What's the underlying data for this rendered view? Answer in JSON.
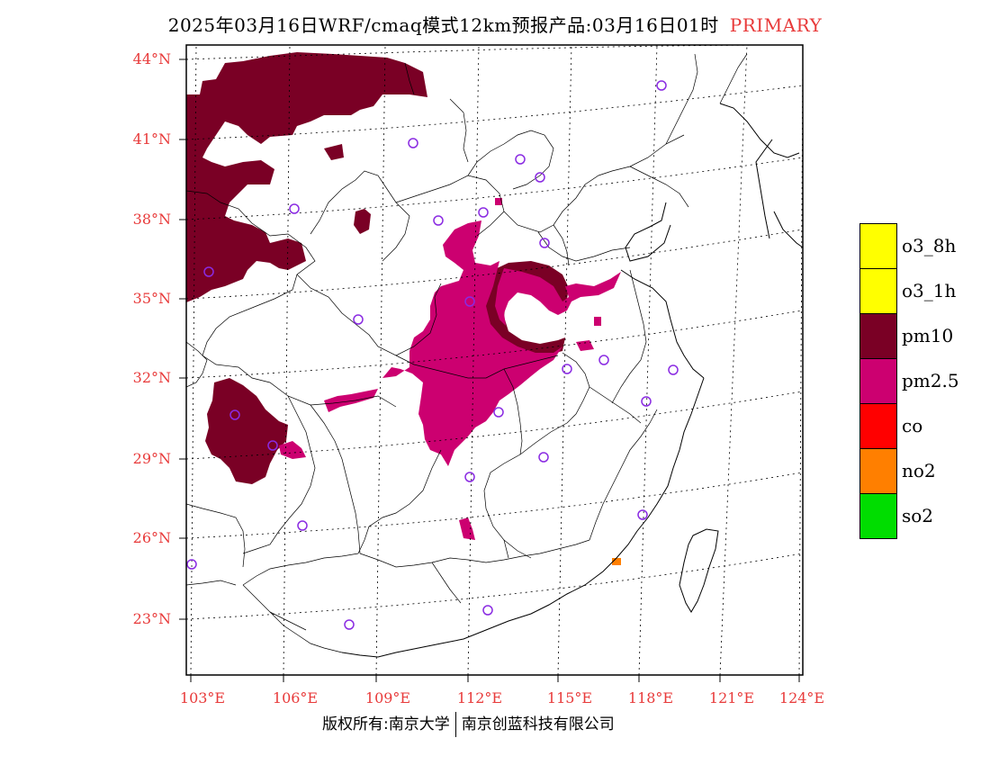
{
  "header": {
    "title": "2025年03月16日WRF/cmaq模式12km预报产品:03月16日01时",
    "badge": "PRIMARY"
  },
  "map": {
    "lat_labels": [
      "44°N",
      "41°N",
      "38°N",
      "35°N",
      "32°N",
      "29°N",
      "26°N",
      "23°N"
    ],
    "lon_labels": [
      "103°E",
      "106°E",
      "109°E",
      "112°E",
      "115°E",
      "118°E",
      "121°E",
      "124°E"
    ]
  },
  "legend": {
    "items": [
      {
        "label": "o3_8h",
        "color": "#ffff00"
      },
      {
        "label": "o3_1h",
        "color": "#ffff00"
      },
      {
        "label": "pm10",
        "color": "#7a0025"
      },
      {
        "label": "pm2.5",
        "color": "#cc0070"
      },
      {
        "label": "co",
        "color": "#ff0000"
      },
      {
        "label": "no2",
        "color": "#ff7f00"
      },
      {
        "label": "so2",
        "color": "#00dd00"
      }
    ]
  },
  "footer": {
    "left": "版权所有:南京大学",
    "right": "南京创蓝科技有限公司"
  }
}
